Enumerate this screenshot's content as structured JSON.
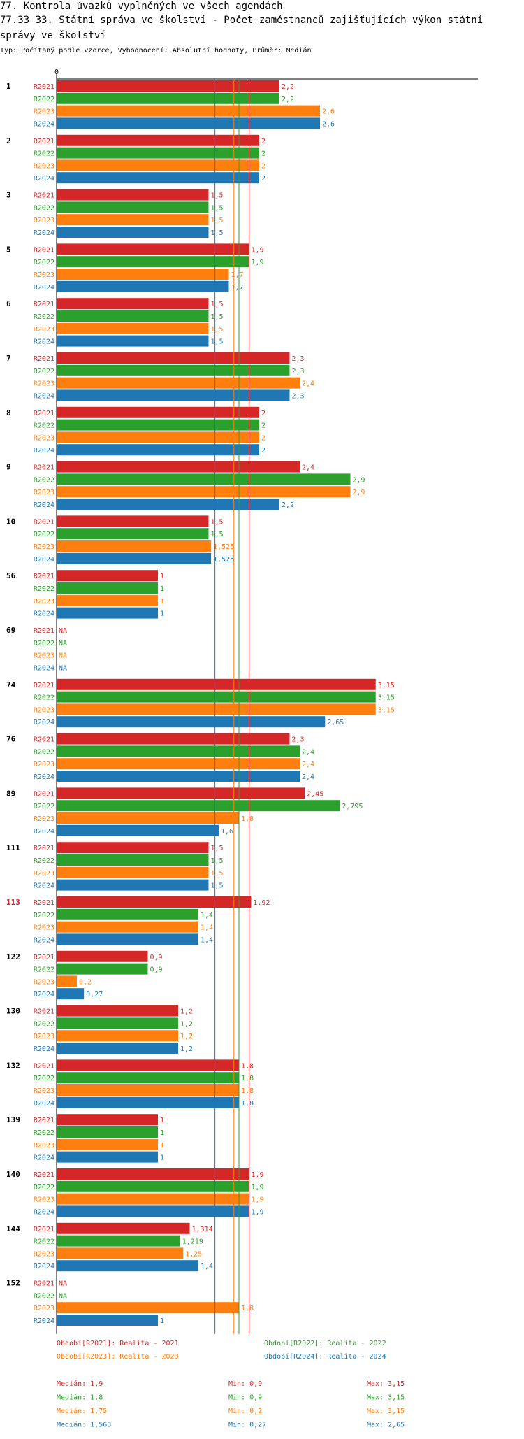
{
  "title_line1": "77. Kontrola úvazků vyplněných ve všech agendách",
  "title_line2": "77.33 33. Státní správa ve školství - Počet zaměstnanců zajišťujících výkon státní správy ve školství",
  "subtitle": "Typ: Počítaný podle vzorce, Vyhodnocení: Absolutní hodnoty, Průměr: Medián",
  "colors": {
    "R2021": "#d62728",
    "R2022": "#2ca02c",
    "R2023": "#ff7f0e",
    "R2024": "#1f77b4",
    "highlight_group": "#d62728"
  },
  "chart_data": {
    "type": "bar",
    "orientation": "horizontal",
    "axis_tick": "0",
    "series_names": [
      "R2021",
      "R2022",
      "R2023",
      "R2024"
    ],
    "groups": [
      {
        "label": "1",
        "values": [
          2.2,
          2.2,
          2.6,
          2.6
        ],
        "labels": [
          "2,2",
          "2,2",
          "2,6",
          "2,6"
        ]
      },
      {
        "label": "2",
        "values": [
          2,
          2,
          2,
          2
        ],
        "labels": [
          "2",
          "2",
          "2",
          "2"
        ]
      },
      {
        "label": "3",
        "values": [
          1.5,
          1.5,
          1.5,
          1.5
        ],
        "labels": [
          "1,5",
          "1,5",
          "1,5",
          "1,5"
        ]
      },
      {
        "label": "5",
        "values": [
          1.9,
          1.9,
          1.7,
          1.7
        ],
        "labels": [
          "1,9",
          "1,9",
          "1,7",
          "1,7"
        ]
      },
      {
        "label": "6",
        "values": [
          1.5,
          1.5,
          1.5,
          1.5
        ],
        "labels": [
          "1,5",
          "1,5",
          "1,5",
          "1,5"
        ]
      },
      {
        "label": "7",
        "values": [
          2.3,
          2.3,
          2.4,
          2.3
        ],
        "labels": [
          "2,3",
          "2,3",
          "2,4",
          "2,3"
        ]
      },
      {
        "label": "8",
        "values": [
          2,
          2,
          2,
          2
        ],
        "labels": [
          "2",
          "2",
          "2",
          "2"
        ]
      },
      {
        "label": "9",
        "values": [
          2.4,
          2.9,
          2.9,
          2.2
        ],
        "labels": [
          "2,4",
          "2,9",
          "2,9",
          "2,2"
        ]
      },
      {
        "label": "10",
        "values": [
          1.5,
          1.5,
          1.525,
          1.525
        ],
        "labels": [
          "1,5",
          "1,5",
          "1,525",
          "1,525"
        ]
      },
      {
        "label": "56",
        "values": [
          1,
          1,
          1,
          1
        ],
        "labels": [
          "1",
          "1",
          "1",
          "1"
        ]
      },
      {
        "label": "69",
        "values": [
          null,
          null,
          null,
          null
        ],
        "labels": [
          "NA",
          "NA",
          "NA",
          "NA"
        ]
      },
      {
        "label": "74",
        "values": [
          3.15,
          3.15,
          3.15,
          2.65
        ],
        "labels": [
          "3,15",
          "3,15",
          "3,15",
          "2,65"
        ]
      },
      {
        "label": "76",
        "values": [
          2.3,
          2.4,
          2.4,
          2.4
        ],
        "labels": [
          "2,3",
          "2,4",
          "2,4",
          "2,4"
        ]
      },
      {
        "label": "89",
        "values": [
          2.45,
          2.795,
          1.8,
          1.6
        ],
        "labels": [
          "2,45",
          "2,795",
          "1,8",
          "1,6"
        ]
      },
      {
        "label": "111",
        "values": [
          1.5,
          1.5,
          1.5,
          1.5
        ],
        "labels": [
          "1,5",
          "1,5",
          "1,5",
          "1,5"
        ]
      },
      {
        "label": "113",
        "highlight": true,
        "values": [
          1.92,
          1.4,
          1.4,
          1.4
        ],
        "labels": [
          "1,92",
          "1,4",
          "1,4",
          "1,4"
        ]
      },
      {
        "label": "122",
        "values": [
          0.9,
          0.9,
          0.2,
          0.27
        ],
        "labels": [
          "0,9",
          "0,9",
          "0,2",
          "0,27"
        ]
      },
      {
        "label": "130",
        "values": [
          1.2,
          1.2,
          1.2,
          1.2
        ],
        "labels": [
          "1,2",
          "1,2",
          "1,2",
          "1,2"
        ]
      },
      {
        "label": "132",
        "values": [
          1.8,
          1.8,
          1.8,
          1.8
        ],
        "labels": [
          "1,8",
          "1,8",
          "1,8",
          "1,8"
        ]
      },
      {
        "label": "139",
        "values": [
          1,
          1,
          1,
          1
        ],
        "labels": [
          "1",
          "1",
          "1",
          "1"
        ]
      },
      {
        "label": "140",
        "values": [
          1.9,
          1.9,
          1.9,
          1.9
        ],
        "labels": [
          "1,9",
          "1,9",
          "1,9",
          "1,9"
        ]
      },
      {
        "label": "144",
        "values": [
          1.314,
          1.219,
          1.25,
          1.4
        ],
        "labels": [
          "1,314",
          "1,219",
          "1,25",
          "1,4"
        ]
      },
      {
        "label": "152",
        "values": [
          null,
          null,
          1.8,
          1
        ],
        "labels": [
          "NA",
          "NA",
          "1,8",
          "1"
        ]
      }
    ],
    "median_lines": [
      {
        "series": "R2021",
        "value": 1.9
      },
      {
        "series": "R2022",
        "value": 1.8
      },
      {
        "series": "R2023",
        "value": 1.75
      },
      {
        "series": "R2024",
        "value": 1.563
      }
    ],
    "legend": [
      {
        "series": "R2021",
        "text": "Období[R2021]: Realita - 2021"
      },
      {
        "series": "R2022",
        "text": "Období[R2022]: Realita - 2022"
      },
      {
        "series": "R2023",
        "text": "Období[R2023]: Realita - 2023"
      },
      {
        "series": "R2024",
        "text": "Období[R2024]: Realita - 2024"
      }
    ],
    "stats": [
      {
        "series": "R2021",
        "median": "Medián: 1,9",
        "min": "Min: 0,9",
        "max": "Max: 3,15"
      },
      {
        "series": "R2022",
        "median": "Medián: 1,8",
        "min": "Min: 0,9",
        "max": "Max: 3,15"
      },
      {
        "series": "R2023",
        "median": "Medián: 1,75",
        "min": "Min: 0,2",
        "max": "Max: 3,15"
      },
      {
        "series": "R2024",
        "median": "Medián: 1,563",
        "min": "Min: 0,27",
        "max": "Max: 2,65"
      }
    ]
  }
}
